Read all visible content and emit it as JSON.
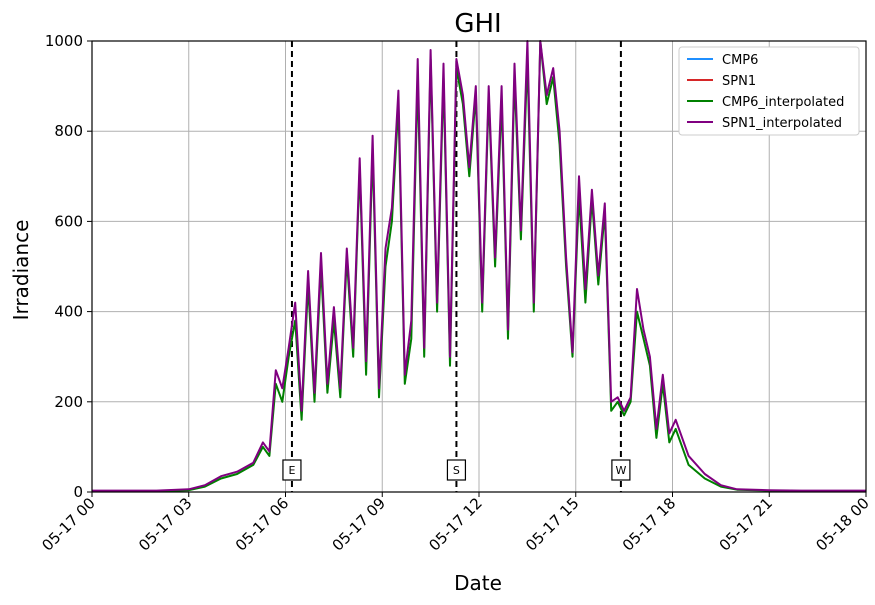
{
  "chart_data": {
    "type": "line",
    "title": "GHI",
    "xlabel": "Date",
    "ylabel": "Irradiance",
    "xlim": [
      "2024-05-17T00:00",
      "2024-05-18T00:00"
    ],
    "ylim": [
      0,
      1000
    ],
    "x_ticks": [
      {
        "value": 0,
        "label": "05-17 00"
      },
      {
        "value": 3,
        "label": "05-17 03"
      },
      {
        "value": 6,
        "label": "05-17 06"
      },
      {
        "value": 9,
        "label": "05-17 09"
      },
      {
        "value": 12,
        "label": "05-17 12"
      },
      {
        "value": 15,
        "label": "05-17 15"
      },
      {
        "value": 18,
        "label": "05-17 18"
      },
      {
        "value": 21,
        "label": "05-17 21"
      },
      {
        "value": 24,
        "label": "05-18 00"
      }
    ],
    "y_ticks": [
      0,
      200,
      400,
      600,
      800,
      1000
    ],
    "grid": true,
    "legend_position": "top-right",
    "colors": {
      "CMP6": "#1f8fff",
      "SPN1": "#d62728",
      "CMP6_interpolated": "#008000",
      "SPN1_interpolated": "#800080"
    },
    "vertical_markers": [
      {
        "hour": 6.2,
        "label": "E"
      },
      {
        "hour": 11.3,
        "label": "S"
      },
      {
        "hour": 16.4,
        "label": "W"
      }
    ],
    "x_unit": "hours since 05-17 00",
    "series": [
      {
        "name": "CMP6",
        "x": [],
        "values": []
      },
      {
        "name": "SPN1",
        "x": [],
        "values": []
      },
      {
        "name": "CMP6_interpolated",
        "x": [
          0,
          1,
          2,
          3,
          3.5,
          4,
          4.5,
          5,
          5.3,
          5.5,
          5.7,
          5.9,
          6.1,
          6.3,
          6.5,
          6.7,
          6.9,
          7.1,
          7.3,
          7.5,
          7.7,
          7.9,
          8.1,
          8.3,
          8.5,
          8.7,
          8.9,
          9.1,
          9.3,
          9.5,
          9.7,
          9.9,
          10.1,
          10.3,
          10.5,
          10.7,
          10.9,
          11.1,
          11.3,
          11.5,
          11.7,
          11.9,
          12.1,
          12.3,
          12.5,
          12.7,
          12.9,
          13.1,
          13.3,
          13.5,
          13.7,
          13.9,
          14.1,
          14.3,
          14.5,
          14.7,
          14.9,
          15.1,
          15.3,
          15.5,
          15.7,
          15.9,
          16.1,
          16.3,
          16.5,
          16.7,
          16.9,
          17.1,
          17.3,
          17.5,
          17.7,
          17.9,
          18.1,
          18.5,
          19,
          19.5,
          20,
          21,
          22,
          23,
          24
        ],
        "values": [
          2,
          2,
          2,
          4,
          12,
          30,
          40,
          60,
          100,
          80,
          240,
          200,
          300,
          380,
          160,
          460,
          200,
          500,
          220,
          380,
          210,
          520,
          300,
          720,
          260,
          760,
          210,
          500,
          600,
          860,
          240,
          340,
          920,
          300,
          960,
          400,
          920,
          280,
          940,
          860,
          700,
          880,
          400,
          880,
          500,
          870,
          340,
          920,
          560,
          960,
          400,
          1000,
          860,
          920,
          770,
          500,
          300,
          660,
          420,
          650,
          460,
          620,
          180,
          200,
          170,
          200,
          400,
          340,
          280,
          120,
          240,
          110,
          140,
          60,
          30,
          12,
          5,
          3,
          2,
          2,
          2
        ]
      },
      {
        "name": "SPN1_interpolated",
        "x": [
          0,
          1,
          2,
          3,
          3.5,
          4,
          4.5,
          5,
          5.3,
          5.5,
          5.7,
          5.9,
          6.1,
          6.3,
          6.5,
          6.7,
          6.9,
          7.1,
          7.3,
          7.5,
          7.7,
          7.9,
          8.1,
          8.3,
          8.5,
          8.7,
          8.9,
          9.1,
          9.3,
          9.5,
          9.7,
          9.9,
          10.1,
          10.3,
          10.5,
          10.7,
          10.9,
          11.1,
          11.3,
          11.5,
          11.7,
          11.9,
          12.1,
          12.3,
          12.5,
          12.7,
          12.9,
          13.1,
          13.3,
          13.5,
          13.7,
          13.9,
          14.1,
          14.3,
          14.5,
          14.7,
          14.9,
          15.1,
          15.3,
          15.5,
          15.7,
          15.9,
          16.1,
          16.3,
          16.5,
          16.7,
          16.9,
          17.1,
          17.3,
          17.5,
          17.7,
          17.9,
          18.1,
          18.5,
          19,
          19.5,
          20,
          21,
          22,
          23,
          24
        ],
        "values": [
          3,
          3,
          3,
          6,
          15,
          35,
          45,
          65,
          110,
          90,
          270,
          230,
          320,
          420,
          180,
          490,
          220,
          530,
          240,
          410,
          230,
          540,
          320,
          740,
          290,
          790,
          230,
          540,
          630,
          890,
          260,
          380,
          960,
          320,
          980,
          420,
          950,
          300,
          960,
          880,
          720,
          900,
          420,
          900,
          520,
          900,
          360,
          950,
          580,
          1000,
          420,
          1000,
          880,
          940,
          800,
          520,
          310,
          700,
          450,
          670,
          480,
          640,
          200,
          210,
          180,
          210,
          450,
          360,
          300,
          140,
          260,
          130,
          160,
          80,
          40,
          15,
          6,
          4,
          3,
          3,
          3
        ]
      }
    ]
  }
}
